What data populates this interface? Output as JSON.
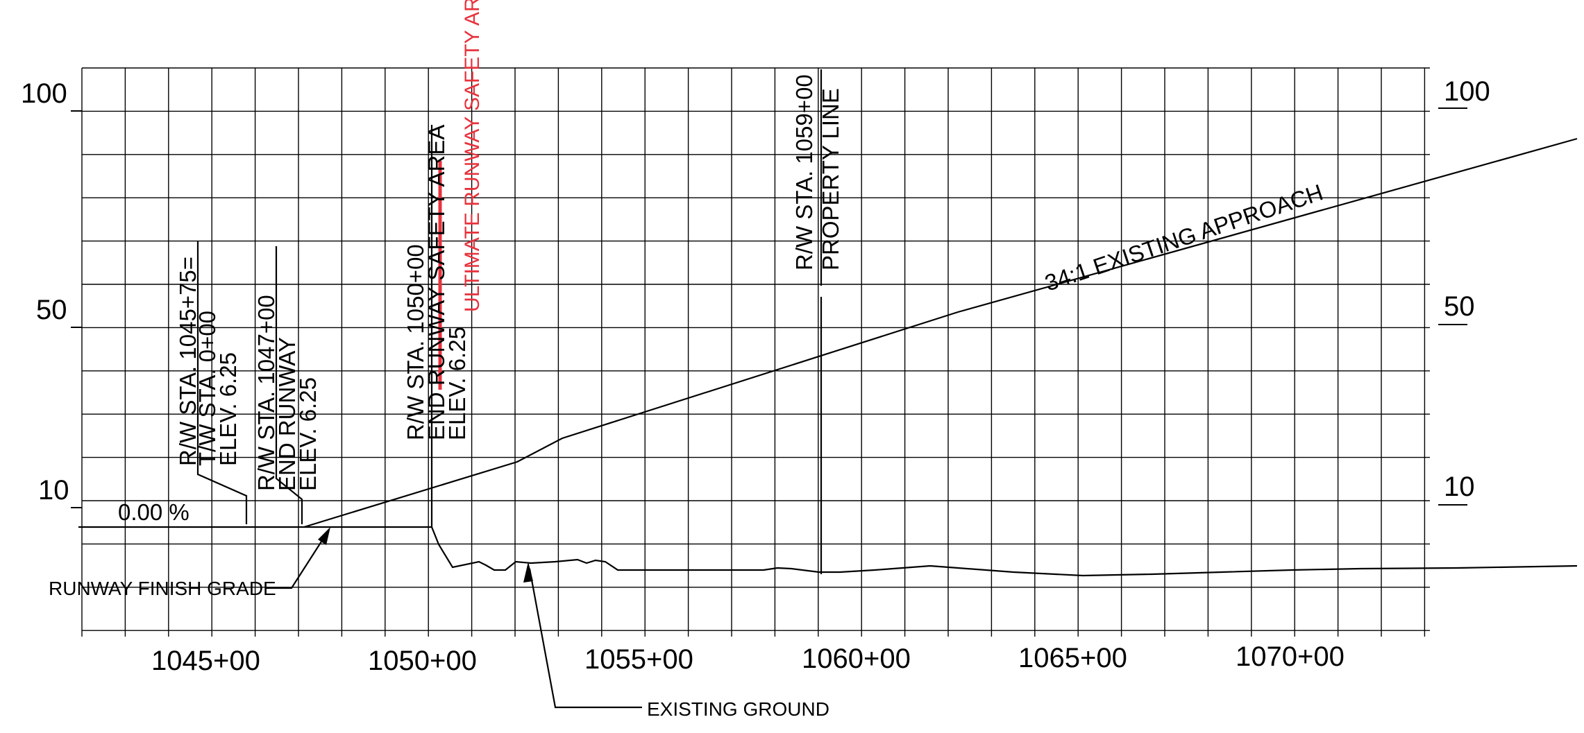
{
  "profile": {
    "elevation_labels_left": [
      "100",
      "50",
      "10"
    ],
    "elevation_labels_right": [
      "100",
      "50",
      "10"
    ],
    "station_labels": [
      "1045+00",
      "1050+00",
      "1055+00",
      "1060+00",
      "1065+00",
      "1070+00"
    ],
    "grade_label": "0.00 %",
    "approach_label": "34:1  EXISTING  APPROACH",
    "finish_grade_label": "RUNWAY  FINISH  GRADE",
    "existing_ground_label": "EXISTING  GROUND",
    "callouts": {
      "rw_1045_75": [
        "R/W  STA.  1045+75=",
        "T/W  STA.  0+00",
        "ELEV.  6.25"
      ],
      "rw_1047": [
        "R/W  STA.  1047+00",
        "END  RUNWAY",
        "ELEV.  6.25"
      ],
      "rw_1050": [
        "R/W  STA.  1050+00",
        "END  RUNWAY  SAFETY  AREA",
        "ELEV.  6.25"
      ],
      "ultimate_rsa": "ULTIMATE RUNWAY SAFETY AREA",
      "rw_1059": [
        "R/W  STA.  1059+00",
        "PROPERTY  LINE"
      ]
    },
    "colors": {
      "linework": "#000000",
      "ultimate_rsa": "#e8323c"
    }
  }
}
